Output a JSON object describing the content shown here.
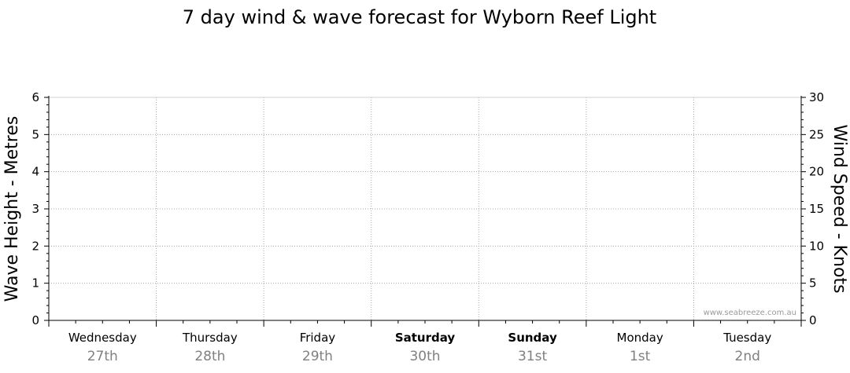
{
  "chart_data": {
    "type": "line",
    "title": "7 day wind & wave forecast for Wyborn Reef Light",
    "ylabel_left": "Wave Height - Metres",
    "ylabel_right": "Wind Speed - Knots",
    "ylim_left": [
      0,
      6
    ],
    "ylim_right": [
      0,
      30
    ],
    "yticks_left": [
      "0",
      "1",
      "2",
      "3",
      "4",
      "5",
      "6"
    ],
    "yticks_right": [
      "0",
      "5",
      "10",
      "15",
      "20",
      "25",
      "30"
    ],
    "days": [
      {
        "name": "Wednesday",
        "date": "27th",
        "weekend": false
      },
      {
        "name": "Thursday",
        "date": "28th",
        "weekend": false
      },
      {
        "name": "Friday",
        "date": "29th",
        "weekend": false
      },
      {
        "name": "Saturday",
        "date": "30th",
        "weekend": true
      },
      {
        "name": "Sunday",
        "date": "31st",
        "weekend": true
      },
      {
        "name": "Monday",
        "date": "1st",
        "weekend": false
      },
      {
        "name": "Tuesday",
        "date": "2nd",
        "weekend": false
      }
    ],
    "series": [],
    "grid": true,
    "watermark": "www.seabreeze.com.au"
  }
}
